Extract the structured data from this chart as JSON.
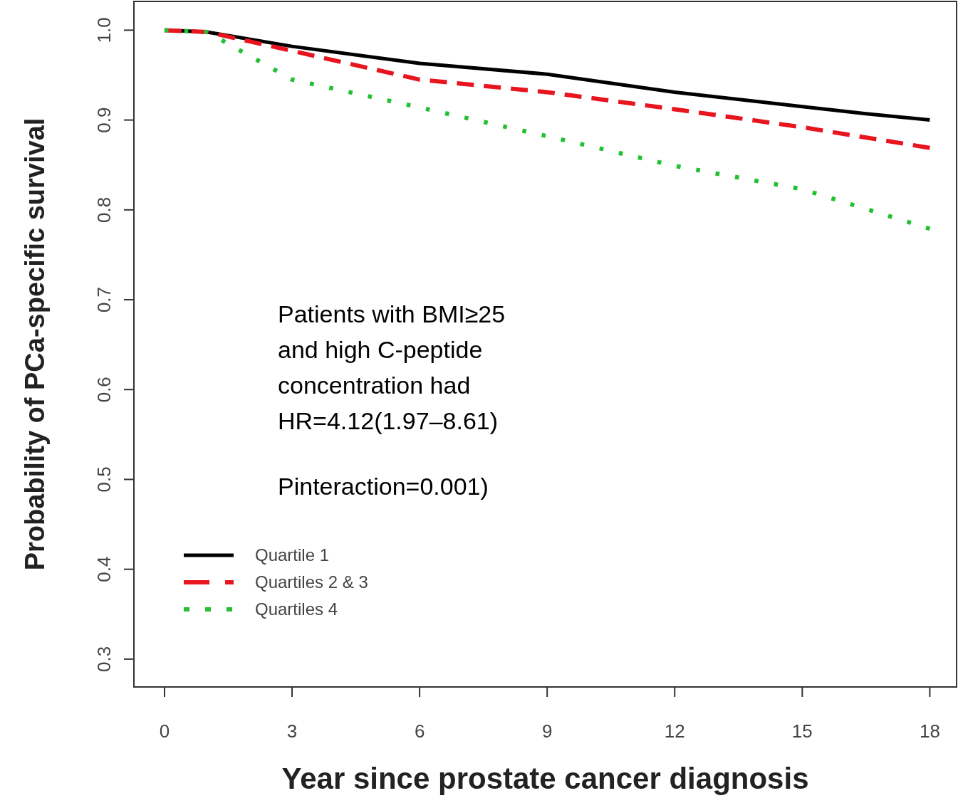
{
  "chart_data": {
    "type": "line",
    "xlabel": "Year since prostate cancer diagnosis",
    "ylabel": "Probability of PCa-specific survival",
    "xlim": [
      -0.72,
      18.63
    ],
    "ylim": [
      0.269,
      1.032
    ],
    "xticks": [
      0,
      3,
      6,
      9,
      12,
      15,
      18
    ],
    "yticks": [
      0.3,
      0.4,
      0.5,
      0.6,
      0.7,
      0.8,
      0.9,
      {
        "value": 1,
        "label": "1.0"
      }
    ],
    "grid": false,
    "legend": "bottom left",
    "annotations": [
      "Patients with BMI≥25",
      "and high C-peptide",
      "concentration had",
      "HR=4.12(1.97–8.61)",
      "Pinteraction=0.001)"
    ],
    "series": [
      {
        "name": "Quartile 1",
        "color": "#000000",
        "line_style": "solid",
        "x": [
          0,
          1,
          3,
          6,
          9,
          12,
          15,
          16.5,
          18
        ],
        "values": [
          1.0,
          0.998,
          0.982,
          0.963,
          0.951,
          0.931,
          0.915,
          0.907,
          0.9
        ]
      },
      {
        "name": "Quartiles 2 & 3",
        "color": "#e8141e",
        "line_style": "dashed",
        "x": [
          0,
          1,
          3,
          6,
          9,
          12,
          15,
          18
        ],
        "values": [
          1.0,
          0.998,
          0.977,
          0.945,
          0.931,
          0.912,
          0.892,
          0.869
        ]
      },
      {
        "name": "Quartiles 4",
        "color": "#22c032",
        "line_style": "dotted",
        "x": [
          0,
          1,
          3,
          6,
          9,
          12,
          15,
          18
        ],
        "values": [
          1.0,
          0.998,
          0.945,
          0.914,
          0.882,
          0.849,
          0.823,
          0.779
        ]
      }
    ]
  }
}
